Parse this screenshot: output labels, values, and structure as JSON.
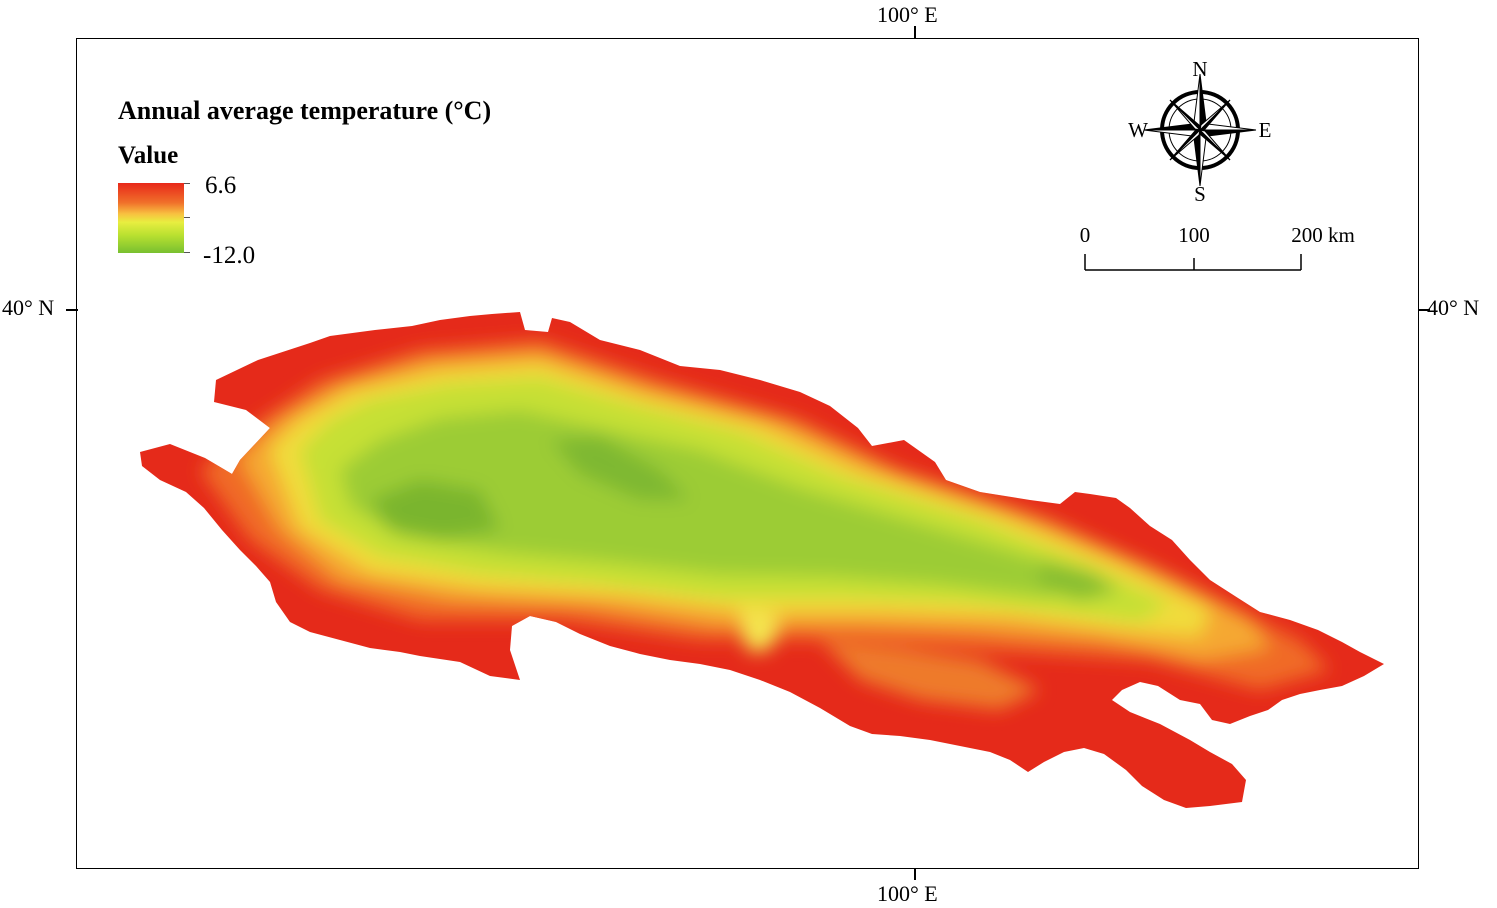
{
  "graticule": {
    "top_lon": "100° E",
    "bottom_lon": "100° E",
    "left_lat": "40° N",
    "right_lat": "40° N"
  },
  "legend": {
    "title": "Annual average temperature (°C)",
    "subtitle": "Value",
    "max_label": "6.6",
    "min_label": "-12.0",
    "high_color": "#e8281a",
    "mid_color": "#f8c040",
    "low_color": "#78c030"
  },
  "north_arrow": {
    "n": "N",
    "s": "S",
    "e": "E",
    "w": "W",
    "icon": "compass-rose-icon"
  },
  "scale_bar": {
    "tick_0": "0",
    "tick_100": "100",
    "tick_200": "200 km"
  }
}
